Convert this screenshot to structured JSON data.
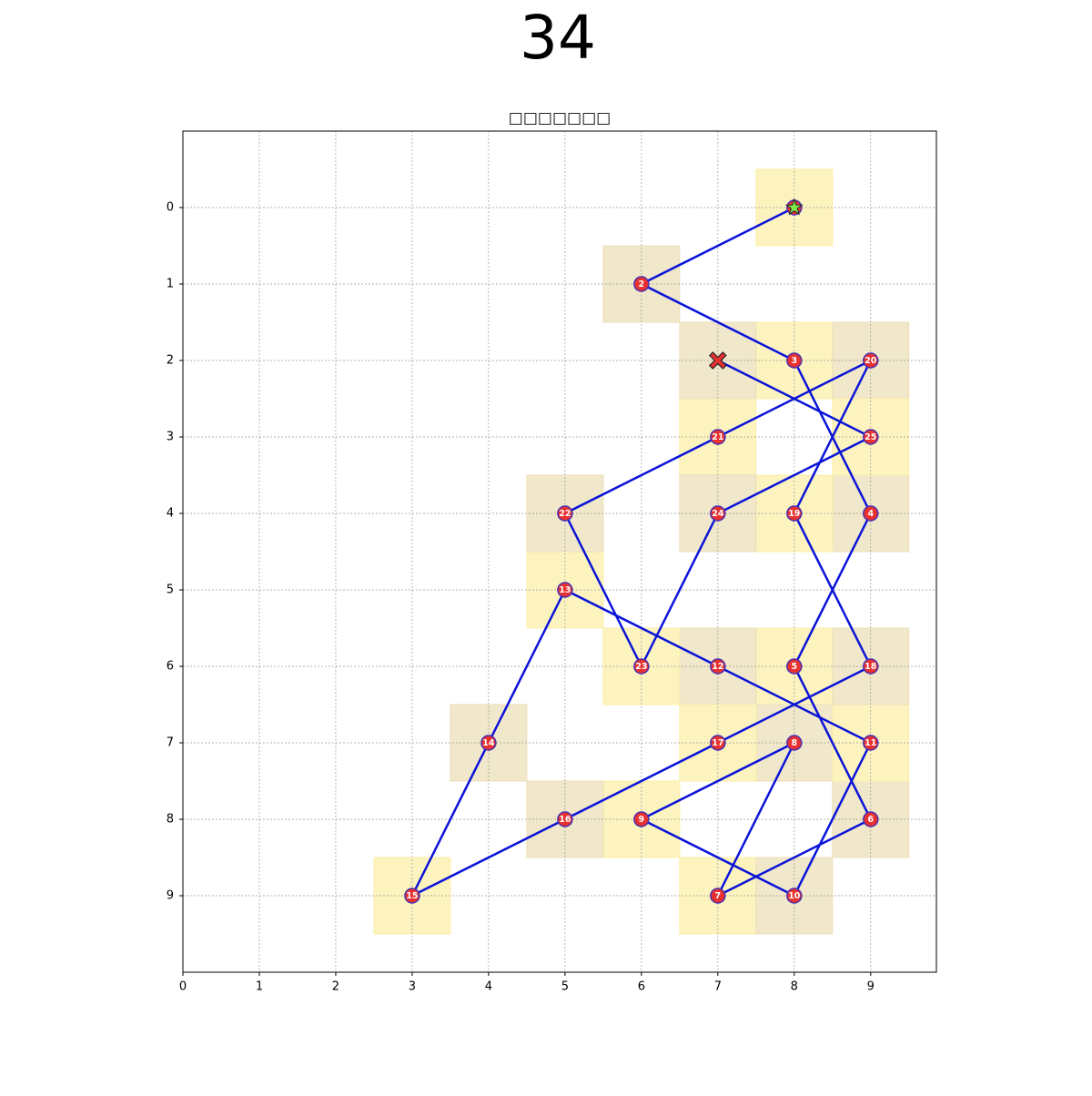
{
  "chart_data": {
    "type": "path",
    "title": "34",
    "subtitle": "□□□□□□□",
    "x": [
      8,
      6,
      8,
      9,
      8,
      9,
      7,
      8,
      6,
      8,
      9,
      7,
      5,
      4,
      3,
      5,
      7,
      9,
      8,
      9,
      7,
      5,
      6,
      7,
      9,
      7
    ],
    "y": [
      0,
      1,
      2,
      4,
      6,
      8,
      9,
      7,
      8,
      9,
      7,
      6,
      5,
      7,
      9,
      8,
      7,
      6,
      4,
      2,
      3,
      4,
      6,
      4,
      3,
      2
    ],
    "labels": [
      null,
      2,
      3,
      4,
      5,
      6,
      7,
      8,
      9,
      10,
      11,
      12,
      13,
      14,
      15,
      16,
      17,
      18,
      19,
      20,
      21,
      22,
      23,
      24,
      25,
      null
    ],
    "line_color": "#0a14d8",
    "marker_color": "#e8312f",
    "start_color": "#7ee84a",
    "end_color": "#e8312f",
    "cell_colors": [
      "#fcefa9",
      "#ecdfb8"
    ],
    "xlim": [
      0,
      9.86
    ],
    "ylim": [
      10,
      -1
    ],
    "xticks": [
      0,
      1,
      2,
      3,
      4,
      5,
      6,
      7,
      8,
      9
    ],
    "yticks": [
      0,
      1,
      2,
      3,
      4,
      5,
      6,
      7,
      8,
      9
    ],
    "grid": true
  }
}
